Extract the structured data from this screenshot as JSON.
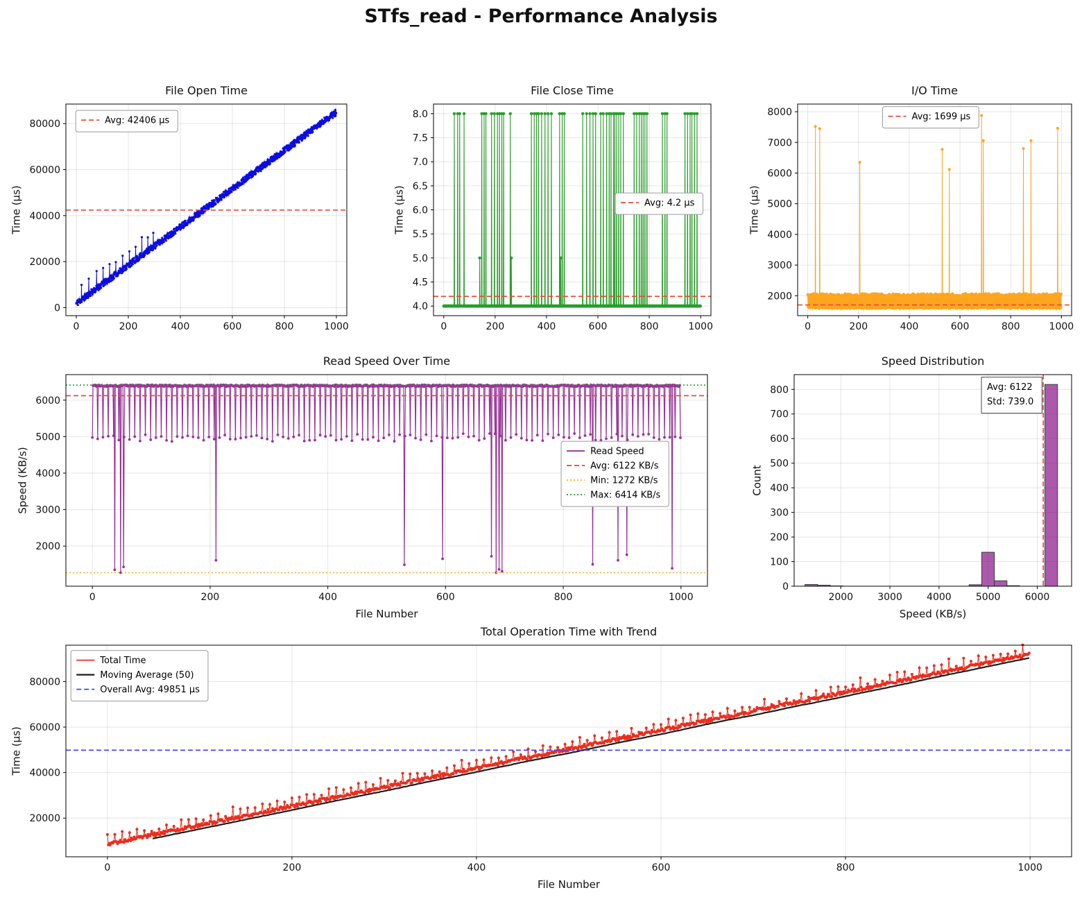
{
  "page_title": "STfs_read - Performance Analysis",
  "chart_data": [
    {
      "id": "open",
      "type": "line",
      "title": "File Open Time",
      "xlabel": "",
      "ylabel": "Time (µs)",
      "xlim": [
        -40,
        1040
      ],
      "ylim": [
        -3500,
        88500
      ],
      "xticks": [
        0,
        200,
        400,
        600,
        800,
        1000
      ],
      "yticks": [
        0,
        20000,
        40000,
        60000,
        80000
      ],
      "series": [
        {
          "name": "File Open Time",
          "color": "#0d0de0",
          "lw": 1,
          "marker": 1.6,
          "gen": {
            "kind": "linear",
            "n": 1000,
            "seed": 11,
            "start": 400,
            "slope": 83.2,
            "noise": 2800,
            "spikes": [
              [
                20,
                6200
              ],
              [
                48,
                6800
              ],
              [
                78,
                6600
              ],
              [
                103,
                6900
              ],
              [
                128,
                6800
              ],
              [
                152,
                6600
              ],
              [
                178,
                6900
              ],
              [
                204,
                6700
              ],
              [
                228,
                6800
              ],
              [
                252,
                6600
              ],
              [
                275,
                6900
              ],
              [
                296,
                6300
              ]
            ]
          }
        }
      ],
      "ref_lines": [
        {
          "axis": "y",
          "value": 42406,
          "color": "#e74c3c",
          "dash": "dashed",
          "label": "Avg: 42406 µs"
        }
      ],
      "legend": {
        "pos": [
          0.035,
          0.03
        ],
        "entries": [
          {
            "label": "Avg: 42406 µs",
            "color": "#e74c3c",
            "dash": "dashed"
          }
        ]
      }
    },
    {
      "id": "close",
      "type": "line",
      "title": "File Close Time",
      "xlabel": "",
      "ylabel": "Time (µs)",
      "xlim": [
        -40,
        1040
      ],
      "ylim": [
        3.8,
        8.2
      ],
      "xticks": [
        0,
        200,
        400,
        600,
        800,
        1000
      ],
      "yticks": [
        4.0,
        4.5,
        5.0,
        5.5,
        6.0,
        6.5,
        7.0,
        7.5,
        8.0
      ],
      "yticklabels": [
        "4.0",
        "4.5",
        "5.0",
        "5.5",
        "6.0",
        "6.5",
        "7.0",
        "7.5",
        "8.0"
      ],
      "series": [
        {
          "name": "File Close Time",
          "color": "#2a9d2a",
          "lw": 1.1,
          "marker": 2.2,
          "gen": {
            "kind": "flat",
            "n": 1000,
            "seed": 21,
            "base": 4.0,
            "spikes": [
              [
                41,
                8
              ],
              [
                54,
                8
              ],
              [
                62,
                8
              ],
              [
                79,
                8
              ],
              [
                140,
                5
              ],
              [
                148,
                8
              ],
              [
                157,
                8
              ],
              [
                164,
                8
              ],
              [
                186,
                8
              ],
              [
                197,
                8
              ],
              [
                209,
                8
              ],
              [
                217,
                8
              ],
              [
                226,
                8
              ],
              [
                233,
                8
              ],
              [
                259,
                8
              ],
              [
                263,
                5
              ],
              [
                341,
                8
              ],
              [
                352,
                8
              ],
              [
                361,
                8
              ],
              [
                369,
                8
              ],
              [
                381,
                8
              ],
              [
                394,
                8
              ],
              [
                406,
                8
              ],
              [
                419,
                8
              ],
              [
                451,
                8
              ],
              [
                455,
                5
              ],
              [
                461,
                8
              ],
              [
                469,
                8
              ],
              [
                541,
                8
              ],
              [
                556,
                8
              ],
              [
                569,
                8
              ],
              [
                581,
                8
              ],
              [
                591,
                8
              ],
              [
                611,
                8
              ],
              [
                621,
                8
              ],
              [
                634,
                8
              ],
              [
                644,
                8
              ],
              [
                651,
                8
              ],
              [
                661,
                8
              ],
              [
                666,
                8
              ],
              [
                673,
                8
              ],
              [
                681,
                8
              ],
              [
                689,
                8
              ],
              [
                699,
                8
              ],
              [
                741,
                8
              ],
              [
                751,
                8
              ],
              [
                761,
                8
              ],
              [
                769,
                8
              ],
              [
                776,
                8
              ],
              [
                783,
                8
              ],
              [
                791,
                8
              ],
              [
                851,
                8
              ],
              [
                861,
                8
              ],
              [
                869,
                8
              ],
              [
                939,
                8
              ],
              [
                949,
                8
              ],
              [
                959,
                8
              ],
              [
                966,
                8
              ],
              [
                976,
                8
              ],
              [
                986,
                8
              ]
            ]
          }
        }
      ],
      "ref_lines": [
        {
          "axis": "y",
          "value": 4.2,
          "color": "#e74c3c",
          "dash": "dashed",
          "label": "Avg: 4.2 µs"
        }
      ],
      "legend": {
        "pos": [
          0.655,
          0.42
        ],
        "entries": [
          {
            "label": "Avg: 4.2 µs",
            "color": "#e74c3c",
            "dash": "dashed"
          }
        ]
      }
    },
    {
      "id": "io",
      "type": "line",
      "title": "I/O Time",
      "xlabel": "",
      "ylabel": "Time (µs)",
      "xlim": [
        -40,
        1040
      ],
      "ylim": [
        1350,
        8250
      ],
      "xticks": [
        0,
        200,
        400,
        600,
        800,
        1000
      ],
      "yticks": [
        2000,
        3000,
        4000,
        5000,
        6000,
        7000,
        8000
      ],
      "series": [
        {
          "name": "I/O Time",
          "color": "#ffa51e",
          "lw": 1,
          "marker": 2,
          "gen": {
            "kind": "band",
            "n": 1000,
            "seed": 31,
            "low": 1585,
            "lowJit": 75,
            "high": 1975,
            "highJit": 95,
            "period": 3,
            "spikes": [
              [
                30,
                7520
              ],
              [
                47,
                7450
              ],
              [
                205,
                6350
              ],
              [
                530,
                6770
              ],
              [
                558,
                6120
              ],
              [
                685,
                7880
              ],
              [
                692,
                7060
              ],
              [
                850,
                6800
              ],
              [
                880,
                7060
              ],
              [
                985,
                7460
              ]
            ]
          }
        }
      ],
      "ref_lines": [
        {
          "axis": "y",
          "value": 1699,
          "color": "#e74c3c",
          "dash": "dashed",
          "label": "Avg: 1699 µs"
        }
      ],
      "legend": {
        "pos": [
          0.31,
          0.012
        ],
        "entries": [
          {
            "label": "Avg: 1699 µs",
            "color": "#e74c3c",
            "dash": "dashed"
          }
        ]
      }
    },
    {
      "id": "speed",
      "type": "line",
      "title": "Read Speed Over Time",
      "xlabel": "File Number",
      "ylabel": "Speed (KB/s)",
      "xlim": [
        -45,
        1045
      ],
      "ylim": [
        900,
        6700
      ],
      "xticks": [
        0,
        200,
        400,
        600,
        800,
        1000
      ],
      "yticks": [
        2000,
        3000,
        4000,
        5000,
        6000
      ],
      "series": [
        {
          "name": "Read Speed",
          "color": "#993399",
          "lw": 1.2,
          "marker": 1.9,
          "gen": {
            "kind": "plateau",
            "n": 1000,
            "seed": 41,
            "top": 6395,
            "topJit": 25,
            "dipEvery": 9,
            "dipVal": 4975,
            "dipJit": 110,
            "spikes": [
              [
                38,
                1350
              ],
              [
                48,
                1272
              ],
              [
                53,
                1430
              ],
              [
                210,
                1610
              ],
              [
                530,
                1490
              ],
              [
                595,
                1650
              ],
              [
                678,
                1720
              ],
              [
                686,
                1272
              ],
              [
                691,
                1360
              ],
              [
                696,
                1310
              ],
              [
                850,
                1500
              ],
              [
                893,
                1610
              ],
              [
                908,
                1760
              ],
              [
                985,
                1390
              ]
            ]
          }
        }
      ],
      "ref_lines": [
        {
          "axis": "y",
          "value": 6414,
          "color": "#2ca02c",
          "dash": "dotted",
          "label": "Max: 6414 KB/s"
        },
        {
          "axis": "y",
          "value": 1272,
          "color": "#ffb02e",
          "dash": "dotted",
          "label": "Min: 1272 KB/s"
        },
        {
          "axis": "y",
          "value": 6122,
          "color": "#e74c3c",
          "dash": "dashed",
          "label": "Avg: 6122 KB/s"
        }
      ],
      "legend": {
        "pos": [
          0.772,
          0.315
        ],
        "entries": [
          {
            "label": "Read Speed",
            "color": "#993399",
            "dash": "solid"
          },
          {
            "label": "Avg: 6122 KB/s",
            "color": "#e74c3c",
            "dash": "dashed"
          },
          {
            "label": "Min: 1272 KB/s",
            "color": "#ffb02e",
            "dash": "dotted"
          },
          {
            "label": "Max: 6414 KB/s",
            "color": "#2ca02c",
            "dash": "dotted"
          }
        ]
      }
    },
    {
      "id": "dist",
      "type": "histogram",
      "title": "Speed Distribution",
      "xlabel": "Speed (KB/s)",
      "ylabel": "Count",
      "xlim": [
        1050,
        6700
      ],
      "ylim": [
        0,
        860
      ],
      "xticks": [
        2000,
        3000,
        4000,
        5000,
        6000
      ],
      "yticks": [
        0,
        100,
        200,
        300,
        400,
        500,
        600,
        700,
        800
      ],
      "bar_color": "rgba(128,0,128,0.65)",
      "bar_edge": "#3a3a3a",
      "bin_edges": [
        1272,
        1529,
        1786,
        2043,
        2300,
        2557,
        2814,
        3071,
        3328,
        3585,
        3842,
        4099,
        4356,
        4613,
        4870,
        5127,
        5384,
        5641,
        5898,
        6155,
        6414
      ],
      "counts": [
        7,
        4,
        1,
        0,
        0,
        0,
        0,
        0,
        0,
        0,
        0,
        0,
        0,
        6,
        138,
        22,
        2,
        0,
        0,
        820
      ],
      "ref_lines": [
        {
          "axis": "x",
          "value": 6122,
          "color": "#e74c3c",
          "dash": "dashed",
          "label": "Avg: 6122"
        }
      ],
      "legend": {
        "pos": [
          0.675,
          0.012
        ],
        "plain": true,
        "box": "square",
        "entries": [
          {
            "label": "Avg: 6122"
          },
          {
            "label": "Std: 739.0"
          }
        ]
      }
    },
    {
      "id": "total",
      "type": "line",
      "title": "Total Operation Time with Trend",
      "xlabel": "File Number",
      "ylabel": "Time (µs)",
      "xlim": [
        -45,
        1045
      ],
      "ylim": [
        3000,
        96000
      ],
      "xticks": [
        0,
        200,
        400,
        600,
        800,
        1000
      ],
      "yticks": [
        20000,
        40000,
        60000,
        80000
      ],
      "series": [
        {
          "name": "Total Time",
          "color": "#ee2c1c",
          "lw": 1,
          "marker": 2,
          "gen": {
            "kind": "linear",
            "n": 1000,
            "seed": 5,
            "start": 7800,
            "slope": 83.5,
            "noise": 1500,
            "spikeEvery": 8,
            "spikeAmp": 1500,
            "spikeJit": 3200,
            "spikes": []
          }
        },
        {
          "name": "Moving Average (50)",
          "color": "#1c1c1c",
          "lw": 2.2,
          "marker": 0,
          "gen": {
            "kind": "movavg",
            "source": 0,
            "window": 50
          }
        }
      ],
      "ref_lines": [
        {
          "axis": "y",
          "value": 49851,
          "color": "#4444f5",
          "dash": "dashed",
          "label": "Overall Avg: 49851 µs"
        }
      ],
      "legend": {
        "pos": [
          0.005,
          0.025
        ],
        "entries": [
          {
            "label": "Total Time",
            "color": "#ee2c1c",
            "dash": "solid"
          },
          {
            "label": "Moving Average (50)",
            "color": "#1c1c1c",
            "dash": "solid",
            "lw": 2.2
          },
          {
            "label": "Overall Avg: 49851 µs",
            "color": "#4444f5",
            "dash": "dashed"
          }
        ]
      }
    }
  ]
}
